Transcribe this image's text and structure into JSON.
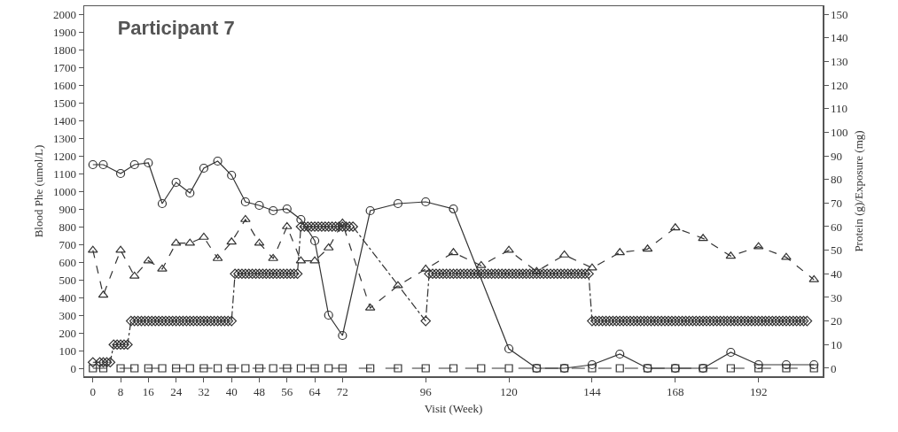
{
  "chart_data": {
    "type": "line",
    "title": "Participant 7",
    "xlabel": "Visit (Week)",
    "ylabel": "Blood Phe (umol/L)",
    "y2label": "Protein (g)/Exposure (mg)",
    "xlim": [
      -2.5,
      210.5
    ],
    "xticks": [
      0,
      8,
      16,
      24,
      32,
      40,
      48,
      56,
      64,
      72,
      96,
      120,
      144,
      168,
      192
    ],
    "ylim": [
      -45,
      2045
    ],
    "yticks": [
      0,
      100,
      200,
      300,
      400,
      500,
      600,
      700,
      800,
      900,
      1000,
      1100,
      1200,
      1300,
      1400,
      1500,
      1600,
      1700,
      1800,
      1900,
      2000
    ],
    "y2lim": [
      -3.4,
      153.4
    ],
    "y2ticks": [
      0,
      10,
      20,
      30,
      40,
      50,
      60,
      70,
      80,
      90,
      100,
      110,
      120,
      130,
      140,
      150
    ],
    "grid": false,
    "series": [
      {
        "color": "#333333",
        "marker": "circle",
        "line_style": "solid",
        "x": [
          0,
          3,
          8,
          12,
          16,
          20,
          24,
          28,
          32,
          36,
          40,
          44,
          48,
          52,
          56,
          60,
          64,
          68,
          72,
          80,
          88,
          96,
          104,
          120,
          128,
          136,
          144,
          152,
          160,
          168,
          176,
          184,
          192,
          200,
          208
        ],
        "values": [
          1150,
          1150,
          1100,
          1150,
          1160,
          930,
          1050,
          990,
          1130,
          1170,
          1090,
          940,
          920,
          890,
          900,
          840,
          720,
          300,
          185,
          890,
          930,
          940,
          900,
          110,
          0,
          0,
          20,
          80,
          0,
          0,
          0,
          90,
          20,
          20,
          20
        ]
      },
      {
        "color": "#333333",
        "marker": "triangle",
        "line_style": "dashed",
        "axis": "y2",
        "x": [
          0,
          3,
          8,
          12,
          16,
          20,
          24,
          28,
          32,
          36,
          40,
          44,
          48,
          52,
          56,
          60,
          64,
          68,
          72,
          80,
          88,
          96,
          104,
          112,
          120,
          128,
          136,
          144,
          152,
          160,
          168,
          176,
          184,
          192,
          200,
          208
        ],
        "values": [
          50,
          31,
          50,
          39,
          45.5,
          42,
          53,
          53,
          55.5,
          46.5,
          53.5,
          63,
          53,
          46.5,
          60,
          45.5,
          45.5,
          51,
          61.5,
          25.5,
          35,
          42,
          49,
          43.5,
          50,
          41,
          48,
          42.5,
          49,
          50.5,
          59.5,
          55,
          47.5,
          51.5,
          47,
          37.5
        ]
      },
      {
        "color": "#333333",
        "marker": "diamond",
        "line_style": "dashdot",
        "axis": "y2",
        "x": [
          0,
          2,
          3,
          4,
          5,
          6,
          7,
          8,
          9,
          10,
          11,
          12,
          13,
          14,
          15,
          16,
          17,
          18,
          19,
          20,
          21,
          22,
          23,
          24,
          25,
          26,
          27,
          28,
          29,
          30,
          31,
          32,
          33,
          34,
          35,
          36,
          37,
          38,
          39,
          40,
          41,
          42,
          43,
          44,
          45,
          46,
          47,
          48,
          49,
          50,
          51,
          52,
          53,
          54,
          55,
          56,
          57,
          58,
          59,
          60,
          61,
          62,
          63,
          64,
          65,
          66,
          67,
          68,
          69,
          70,
          71,
          72,
          73,
          74,
          75,
          96,
          97,
          98,
          99,
          100,
          101,
          102,
          103,
          104,
          105,
          106,
          107,
          108,
          109,
          110,
          111,
          112,
          113,
          114,
          115,
          116,
          117,
          118,
          119,
          120,
          121,
          122,
          123,
          124,
          125,
          126,
          127,
          128,
          129,
          130,
          131,
          132,
          133,
          134,
          135,
          136,
          137,
          138,
          139,
          140,
          141,
          142,
          143,
          144,
          145,
          146,
          147,
          148,
          149,
          150,
          151,
          152,
          153,
          154,
          155,
          156,
          157,
          158,
          159,
          160,
          161,
          162,
          163,
          164,
          165,
          166,
          167,
          168,
          169,
          170,
          171,
          172,
          173,
          174,
          175,
          176,
          177,
          178,
          179,
          180,
          181,
          182,
          183,
          184,
          185,
          186,
          187,
          188,
          189,
          190,
          191,
          192,
          193,
          194,
          195,
          196,
          197,
          198,
          199,
          200,
          201,
          202,
          203,
          204,
          205,
          206
        ],
        "values": [
          2.5,
          2.5,
          2.5,
          2.5,
          2.5,
          10,
          10,
          10,
          10,
          10,
          20,
          20,
          20,
          20,
          20,
          20,
          20,
          20,
          20,
          20,
          20,
          20,
          20,
          20,
          20,
          20,
          20,
          20,
          20,
          20,
          20,
          20,
          20,
          20,
          20,
          20,
          20,
          20,
          20,
          20,
          40,
          40,
          40,
          40,
          40,
          40,
          40,
          40,
          40,
          40,
          40,
          40,
          40,
          40,
          40,
          40,
          40,
          40,
          40,
          60,
          60,
          60,
          60,
          60,
          60,
          60,
          60,
          60,
          60,
          60,
          60,
          60,
          60,
          60,
          60,
          20,
          40,
          40,
          40,
          40,
          40,
          40,
          40,
          40,
          40,
          40,
          40,
          40,
          40,
          40,
          40,
          40,
          40,
          40,
          40,
          40,
          40,
          40,
          40,
          40,
          40,
          40,
          40,
          40,
          40,
          40,
          40,
          40,
          40,
          40,
          40,
          40,
          40,
          40,
          40,
          40,
          40,
          40,
          40,
          40,
          40,
          40,
          40,
          20,
          20,
          20,
          20,
          20,
          20,
          20,
          20,
          20,
          20,
          20,
          20,
          20,
          20,
          20,
          20,
          20,
          20,
          20,
          20,
          20,
          20,
          20,
          20,
          20,
          20,
          20,
          20,
          20,
          20,
          20,
          20,
          20,
          20,
          20,
          20,
          20,
          20,
          20,
          20,
          20,
          20,
          20,
          20,
          20,
          20,
          20,
          20,
          20,
          20,
          20,
          20,
          20,
          20,
          20,
          20,
          20,
          20,
          20,
          20,
          20,
          20,
          20
        ]
      },
      {
        "color": "#333333",
        "marker": "square",
        "line_style": "longdash",
        "x": [
          0,
          3,
          8,
          12,
          16,
          20,
          24,
          28,
          32,
          36,
          40,
          44,
          48,
          52,
          56,
          60,
          64,
          68,
          72,
          80,
          88,
          96,
          104,
          112,
          120,
          128,
          136,
          144,
          152,
          160,
          168,
          176,
          184,
          192,
          200,
          208
        ],
        "values": [
          0,
          0,
          0,
          0,
          0,
          0,
          0,
          0,
          0,
          0,
          0,
          0,
          0,
          0,
          0,
          0,
          0,
          0,
          0,
          0,
          0,
          0,
          0,
          0,
          0,
          0,
          0,
          0,
          0,
          0,
          0,
          0,
          0,
          0,
          0,
          0
        ]
      }
    ]
  }
}
